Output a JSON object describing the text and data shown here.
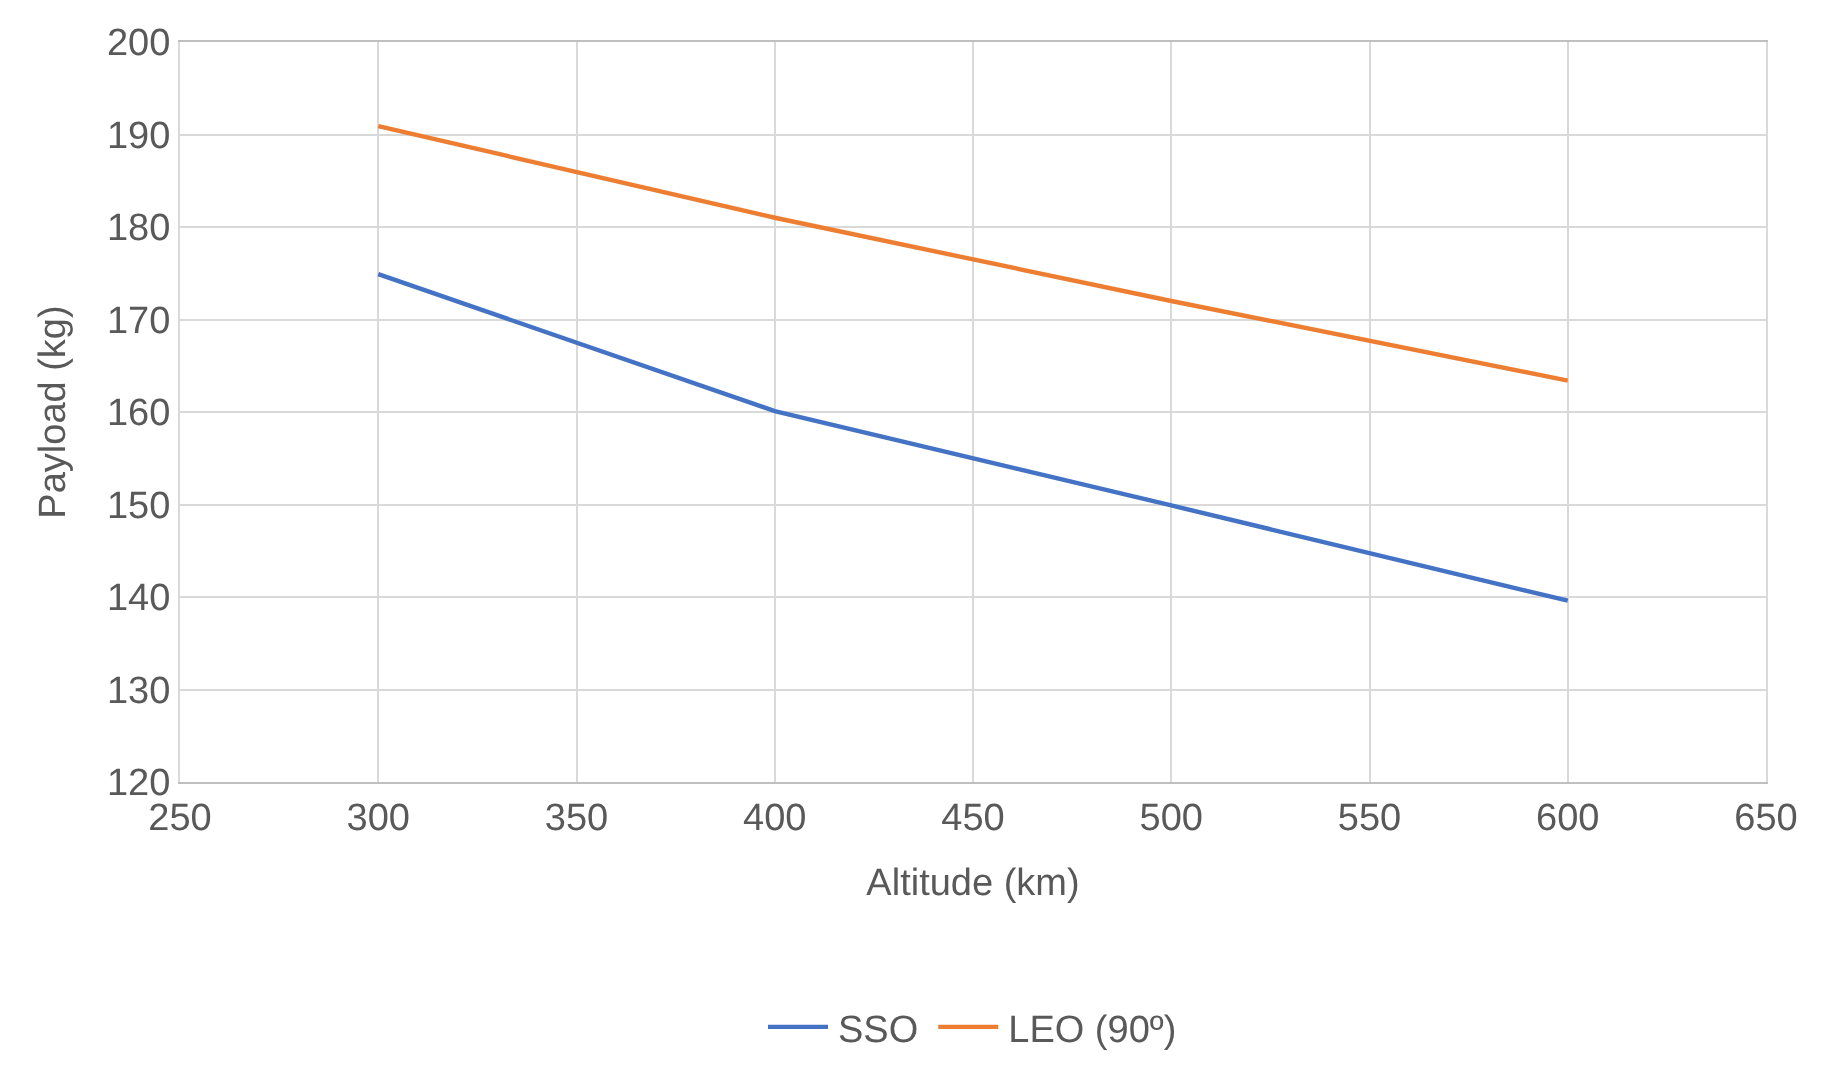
{
  "chart_data": {
    "type": "line",
    "xlabel": "Altitude (km)",
    "ylabel": "Payload (kg)",
    "x": [
      300,
      400,
      500,
      600
    ],
    "series": [
      {
        "name": "SSO",
        "color": "#4472c4",
        "values": [
          174.9,
          160.1,
          149.9,
          139.6
        ]
      },
      {
        "name": "LEO (90º)",
        "color": "#ed7d31",
        "values": [
          190.9,
          181.0,
          172.0,
          163.4
        ]
      }
    ],
    "xlim": [
      250,
      650
    ],
    "xticks": [
      250,
      300,
      350,
      400,
      450,
      500,
      550,
      600,
      650
    ],
    "ylim": [
      120,
      200
    ],
    "yticks": [
      120,
      130,
      140,
      150,
      160,
      170,
      180,
      190,
      200
    ],
    "grid": true,
    "legend": "bottom",
    "marker": "none",
    "line_style": "solid"
  }
}
